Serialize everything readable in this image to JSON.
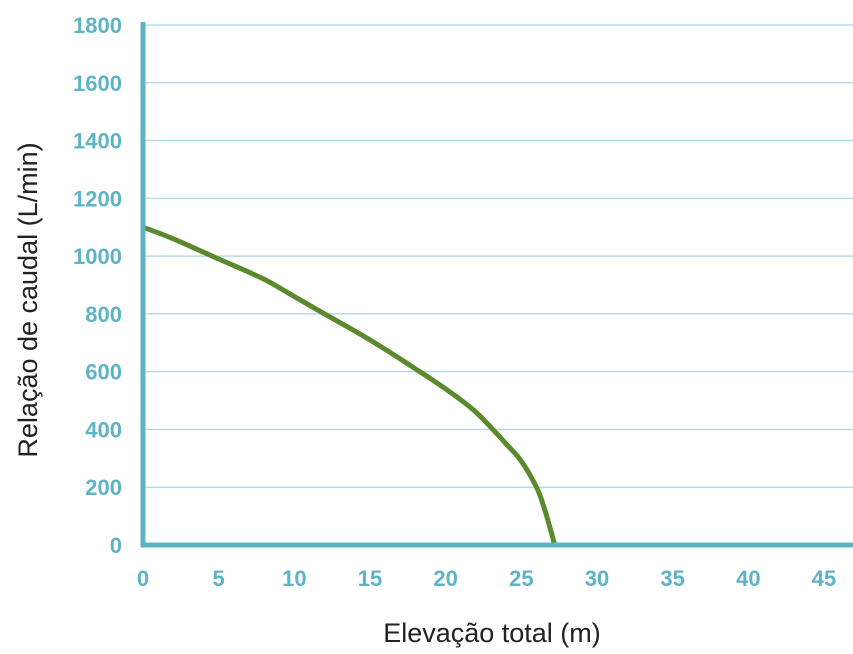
{
  "chart_data": {
    "type": "line",
    "title": "",
    "xlabel": "Elevação total (m)",
    "ylabel": "Relação de caudal (L/min)",
    "xlim": [
      0,
      45
    ],
    "ylim": [
      0,
      1800
    ],
    "x_ticks": [
      "0",
      "5",
      "10",
      "15",
      "20",
      "25",
      "30",
      "35",
      "40",
      "45"
    ],
    "y_ticks": [
      "0",
      "200",
      "400",
      "600",
      "800",
      "1000",
      "1200",
      "1400",
      "1600",
      "1800"
    ],
    "grid": "horizontal",
    "legend": "none",
    "series": [
      {
        "x": [
          0,
          2,
          5,
          8,
          10,
          12,
          15,
          18,
          20,
          22,
          24,
          25,
          26,
          26.5,
          27,
          27.2
        ],
        "y": [
          1100,
          1060,
          990,
          920,
          860,
          800,
          710,
          610,
          540,
          460,
          350,
          290,
          200,
          130,
          40,
          0
        ]
      }
    ],
    "colors": {
      "axis": "#5fb3c7",
      "tick_label": "#5fb3c7",
      "grid": "#a9d6e2",
      "line": "#5b8a2e"
    }
  }
}
